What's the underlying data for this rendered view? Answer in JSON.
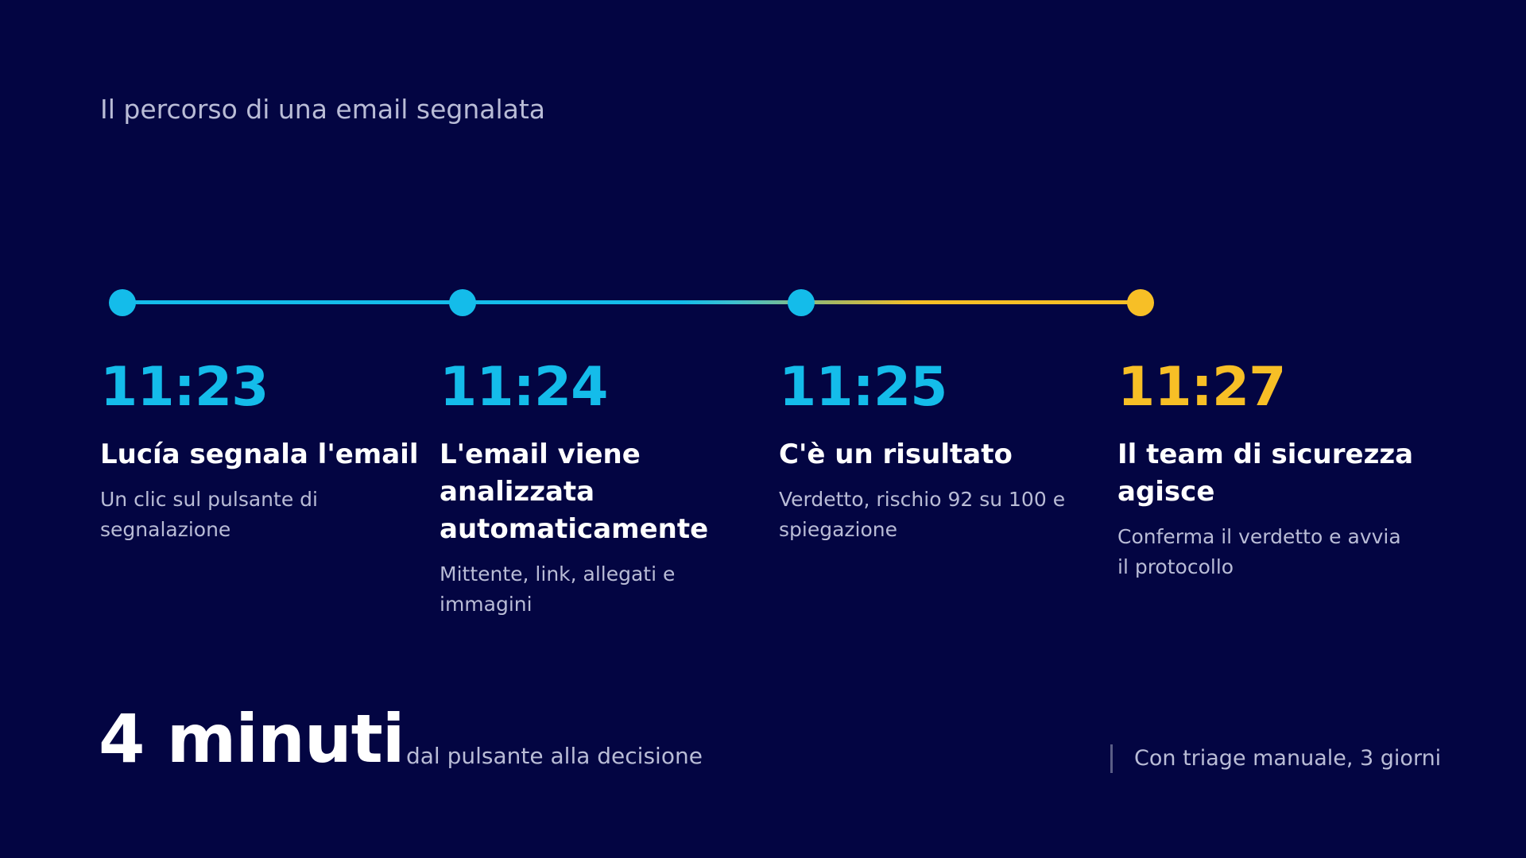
{
  "title": "Il percorso di una email segnalata",
  "colors": {
    "background": "#030542",
    "cyan": "#14bcea",
    "yellow": "#f7bf26",
    "muted_text": "#b9bcd6"
  },
  "timeline": [
    {
      "time": "11:23",
      "heading": "Lucía segnala l'email",
      "description": "Un clic sul pulsante di segnalazione",
      "color": "#14bcea"
    },
    {
      "time": "11:24",
      "heading": "L'email viene analizzata automaticamente",
      "description": "Mittente, link, allegati e immagini",
      "color": "#14bcea"
    },
    {
      "time": "11:25",
      "heading": "C'è un risultato",
      "description": "Verdetto, rischio 92 su 100 e spiegazione",
      "color": "#14bcea"
    },
    {
      "time": "11:27",
      "heading": "Il team di sicurezza agisce",
      "description": "Conferma il verdetto e avvia il protocollo",
      "color": "#f7bf26"
    }
  ],
  "summary": {
    "headline": "4 minuti",
    "subline": "dal pulsante alla decisione",
    "comparison": "Con triage manuale, 3 giorni"
  }
}
